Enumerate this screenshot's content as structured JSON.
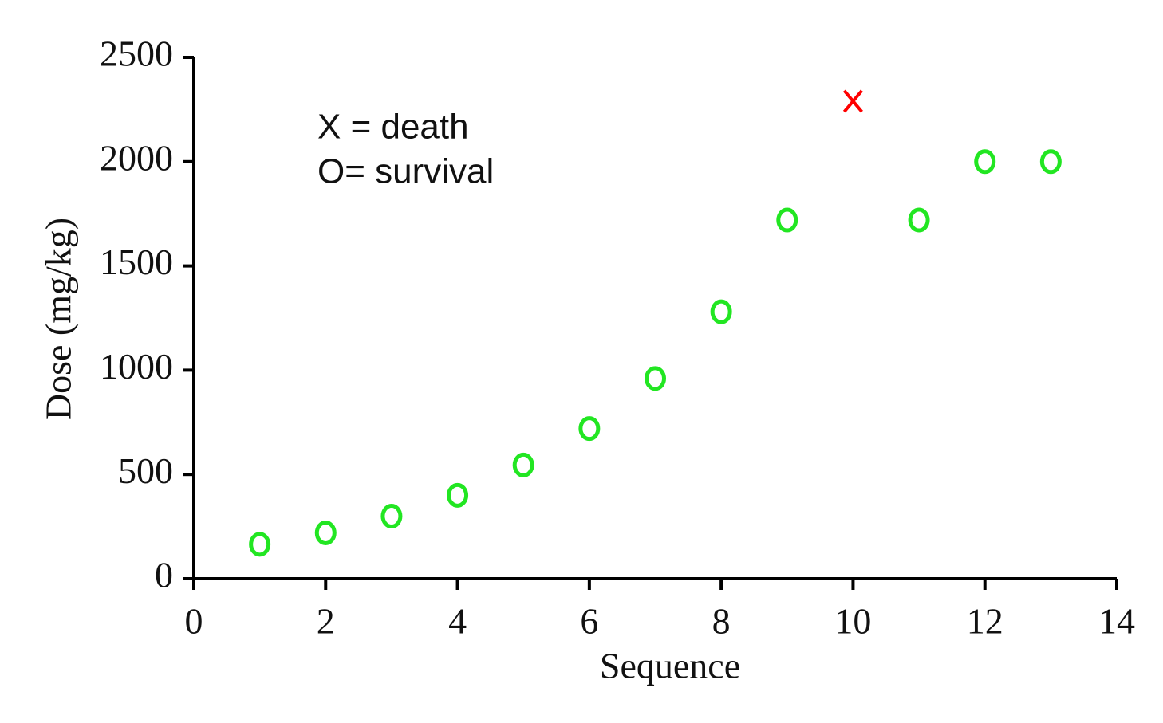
{
  "chart_data": {
    "type": "scatter",
    "x_label": "Sequence",
    "y_label": "Dose (mg/kg)",
    "xlim": [
      0,
      14
    ],
    "xticks": [
      0,
      2,
      4,
      6,
      8,
      10,
      12,
      14
    ],
    "ylim": [
      0,
      2500
    ],
    "yticks": [
      0,
      500,
      1000,
      1500,
      2000,
      2500
    ],
    "grid": false,
    "series": [
      {
        "name": "O= survival",
        "color": "#22e622",
        "marker": "circle",
        "x": [
          1,
          2,
          3,
          4,
          5,
          6,
          7,
          8,
          9,
          11,
          12,
          13
        ],
        "values": [
          165,
          220,
          300,
          400,
          545,
          720,
          960,
          1280,
          1720,
          1720,
          2000,
          2000
        ]
      },
      {
        "name": "X = death",
        "color": "#ff0000",
        "marker": "x",
        "x": [
          10
        ],
        "values": [
          2290
        ]
      }
    ]
  }
}
